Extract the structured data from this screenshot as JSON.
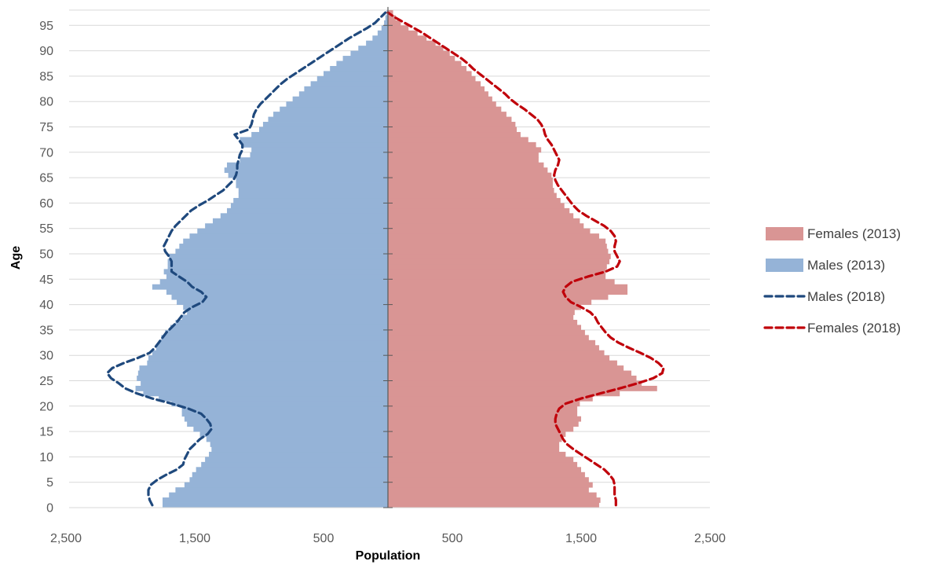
{
  "chart_data": {
    "type": "bar",
    "subtype": "population-pyramid",
    "xlabel": "Population",
    "ylabel": "Age",
    "xlim": [
      -2500,
      2500
    ],
    "ylim": [
      0,
      98
    ],
    "x_ticks": [
      {
        "value": -2500,
        "label": "2,500"
      },
      {
        "value": -1500,
        "label": "1,500"
      },
      {
        "value": -500,
        "label": "500"
      },
      {
        "value": 500,
        "label": "500"
      },
      {
        "value": 1500,
        "label": "1,500"
      },
      {
        "value": 2500,
        "label": "2,500"
      }
    ],
    "y_ticks": [
      0,
      5,
      10,
      15,
      20,
      25,
      30,
      35,
      40,
      45,
      50,
      55,
      60,
      65,
      70,
      75,
      80,
      85,
      90,
      95
    ],
    "legend_position": "right",
    "grid": true,
    "colors": {
      "females_2013": "#d99594",
      "males_2013": "#95b3d7",
      "males_2018": "#1f497d",
      "females_2018": "#c0000a",
      "axis": "#595959",
      "grid": "#d9d9d9"
    },
    "series": [
      {
        "name": "Females (2013)",
        "kind": "bar",
        "side": "right",
        "values": [
          1640,
          1650,
          1620,
          1560,
          1590,
          1560,
          1530,
          1500,
          1470,
          1440,
          1380,
          1330,
          1330,
          1350,
          1380,
          1440,
          1480,
          1500,
          1470,
          1470,
          1490,
          1590,
          1800,
          2090,
          1970,
          1930,
          1890,
          1830,
          1780,
          1720,
          1680,
          1640,
          1610,
          1560,
          1530,
          1500,
          1470,
          1440,
          1450,
          1500,
          1580,
          1710,
          1860,
          1860,
          1760,
          1690,
          1690,
          1700,
          1720,
          1730,
          1710,
          1700,
          1690,
          1640,
          1570,
          1520,
          1490,
          1440,
          1410,
          1370,
          1340,
          1310,
          1290,
          1280,
          1280,
          1270,
          1240,
          1210,
          1170,
          1170,
          1190,
          1150,
          1090,
          1030,
          1000,
          990,
          960,
          920,
          880,
          840,
          810,
          780,
          750,
          720,
          680,
          650,
          610,
          570,
          520,
          480,
          430,
          370,
          300,
          230,
          160,
          100,
          60,
          40
        ]
      },
      {
        "name": "Males (2013)",
        "kind": "bar",
        "side": "left",
        "values": [
          1750,
          1750,
          1700,
          1650,
          1580,
          1540,
          1520,
          1490,
          1450,
          1420,
          1390,
          1370,
          1380,
          1410,
          1460,
          1510,
          1560,
          1580,
          1600,
          1600,
          1680,
          1780,
          1900,
          1960,
          1920,
          1950,
          1940,
          1930,
          1870,
          1860,
          1830,
          1800,
          1780,
          1760,
          1730,
          1690,
          1650,
          1600,
          1560,
          1590,
          1640,
          1680,
          1720,
          1830,
          1770,
          1720,
          1740,
          1710,
          1710,
          1700,
          1650,
          1620,
          1590,
          1540,
          1480,
          1420,
          1360,
          1300,
          1250,
          1220,
          1200,
          1160,
          1160,
          1180,
          1180,
          1240,
          1270,
          1250,
          1150,
          1070,
          1060,
          1140,
          1150,
          1060,
          1000,
          970,
          930,
          890,
          840,
          790,
          740,
          690,
          650,
          600,
          550,
          500,
          450,
          400,
          350,
          290,
          230,
          170,
          120,
          80,
          50,
          30,
          20,
          10
        ]
      },
      {
        "name": "Males (2018)",
        "kind": "line",
        "side": "left",
        "values": [
          1830,
          1850,
          1860,
          1860,
          1840,
          1790,
          1720,
          1640,
          1590,
          1580,
          1560,
          1540,
          1500,
          1460,
          1400,
          1370,
          1380,
          1410,
          1450,
          1550,
          1680,
          1830,
          1950,
          2040,
          2090,
          2150,
          2180,
          2140,
          2050,
          1940,
          1850,
          1810,
          1780,
          1750,
          1720,
          1680,
          1640,
          1610,
          1580,
          1520,
          1440,
          1410,
          1450,
          1520,
          1560,
          1620,
          1680,
          1680,
          1680,
          1700,
          1730,
          1740,
          1720,
          1700,
          1680,
          1650,
          1610,
          1570,
          1530,
          1470,
          1400,
          1340,
          1280,
          1240,
          1200,
          1180,
          1170,
          1170,
          1160,
          1150,
          1130,
          1130,
          1160,
          1190,
          1080,
          1060,
          1050,
          1040,
          1020,
          990,
          950,
          910,
          870,
          830,
          780,
          720,
          660,
          600,
          540,
          480,
          420,
          360,
          300,
          230,
          160,
          100,
          60,
          20
        ]
      },
      {
        "name": "Females (2018)",
        "kind": "line",
        "side": "right",
        "values": [
          1770,
          1770,
          1760,
          1760,
          1760,
          1750,
          1720,
          1680,
          1620,
          1560,
          1500,
          1440,
          1390,
          1360,
          1340,
          1320,
          1300,
          1300,
          1310,
          1330,
          1380,
          1500,
          1650,
          1800,
          1940,
          2060,
          2130,
          2140,
          2100,
          2040,
          1960,
          1870,
          1790,
          1730,
          1690,
          1660,
          1630,
          1610,
          1570,
          1500,
          1420,
          1380,
          1360,
          1380,
          1430,
          1550,
          1690,
          1780,
          1800,
          1780,
          1760,
          1760,
          1770,
          1760,
          1730,
          1680,
          1610,
          1540,
          1480,
          1440,
          1410,
          1380,
          1350,
          1320,
          1300,
          1290,
          1300,
          1320,
          1330,
          1310,
          1290,
          1270,
          1240,
          1220,
          1210,
          1190,
          1160,
          1110,
          1060,
          1000,
          950,
          910,
          860,
          810,
          760,
          710,
          660,
          620,
          570,
          510,
          450,
          390,
          330,
          270,
          200,
          130,
          60,
          0
        ]
      }
    ]
  }
}
